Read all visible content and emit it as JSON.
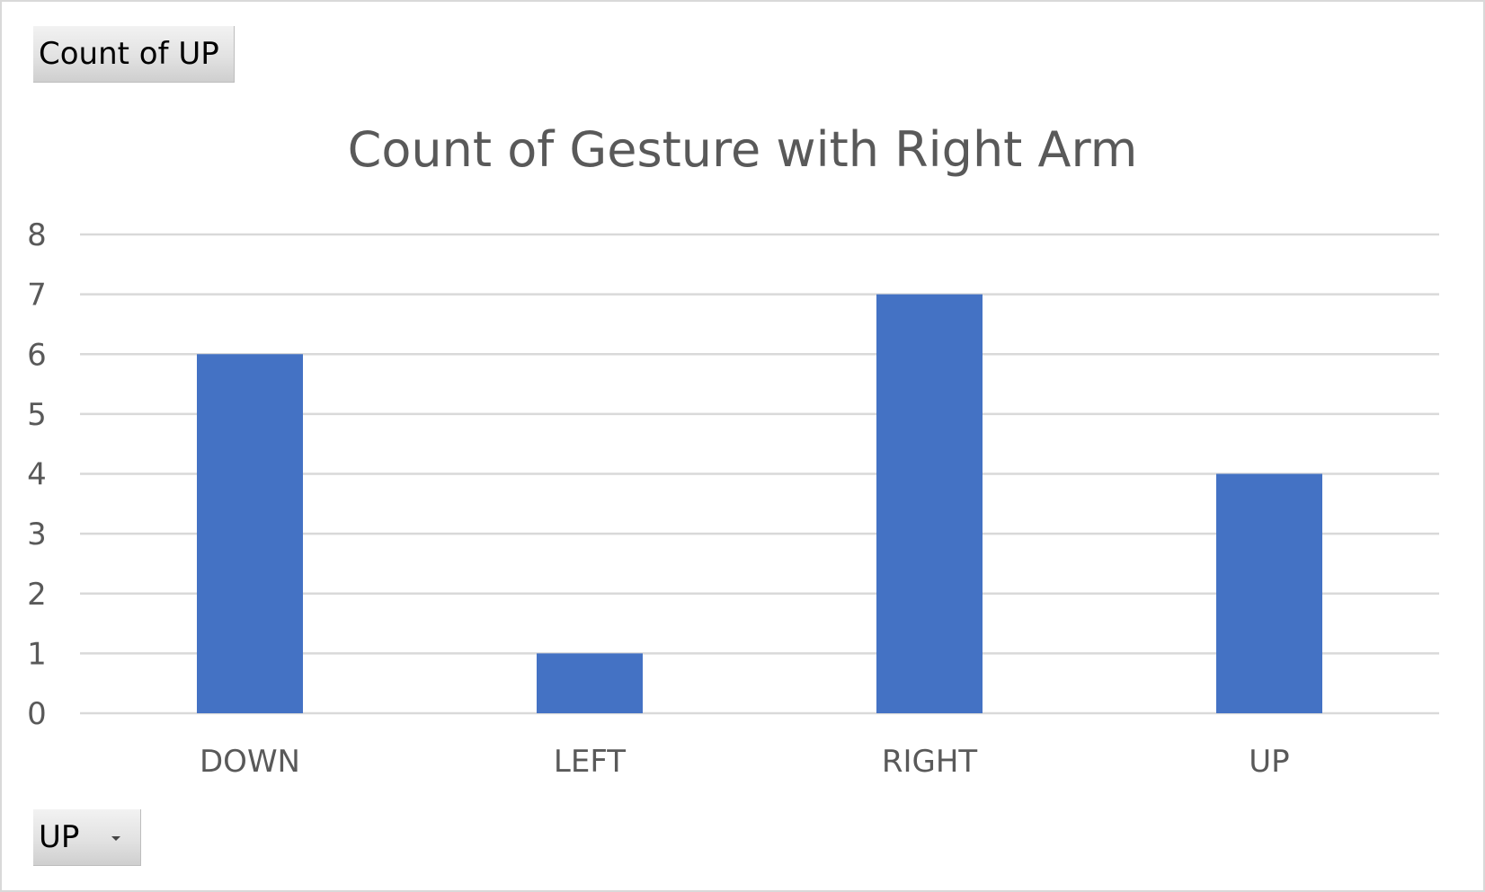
{
  "value_field_button": {
    "label": "Count of UP"
  },
  "axis_field_button": {
    "label": "UP"
  },
  "chart_data": {
    "type": "bar",
    "title": "Count of Gesture with Right Arm",
    "xlabel": "",
    "ylabel": "",
    "categories": [
      "DOWN",
      "LEFT",
      "RIGHT",
      "UP"
    ],
    "values": [
      6,
      1,
      7,
      4
    ],
    "ylim": [
      0,
      8
    ],
    "yticks": [
      "0",
      "1",
      "2",
      "3",
      "4",
      "5",
      "6",
      "7",
      "8"
    ],
    "grid": true,
    "legend": "none",
    "bar_color": "#4472c4",
    "grid_color": "#d9d9d9"
  }
}
